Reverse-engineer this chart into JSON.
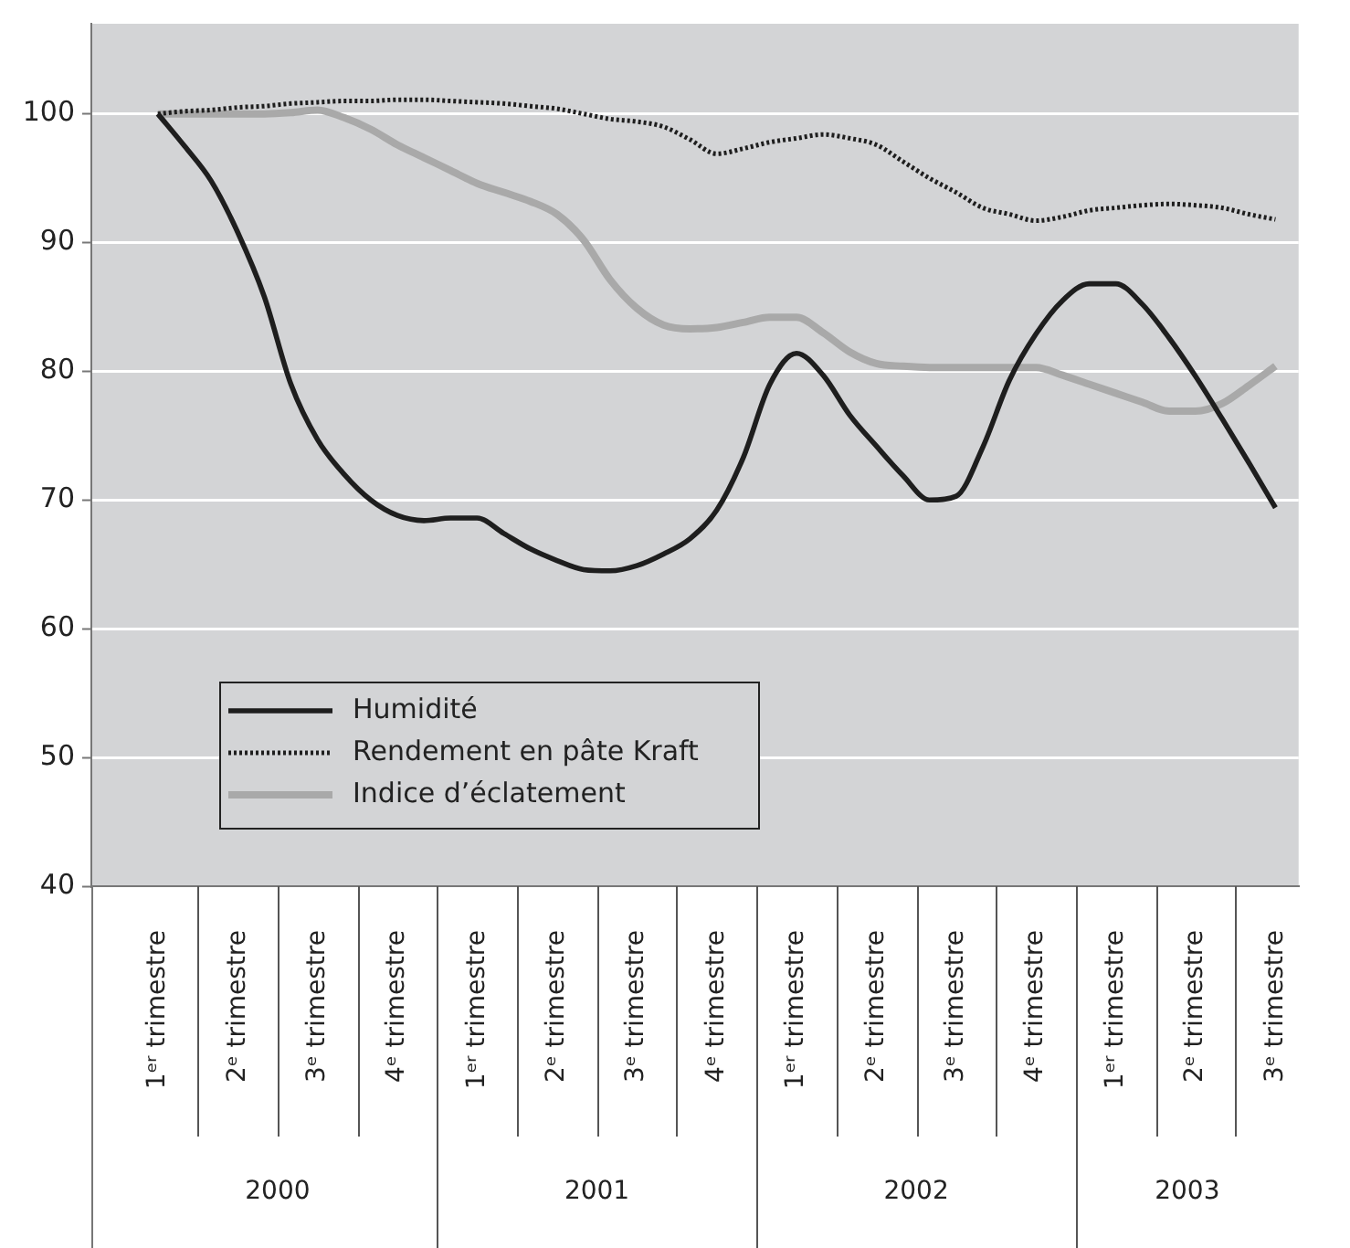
{
  "chart_data": {
    "type": "line",
    "ylim": [
      40,
      107
    ],
    "yticks": [
      40,
      50,
      60,
      70,
      80,
      90,
      100
    ],
    "grid": "y",
    "legend": "bottom left",
    "categories": [
      "1ᵉʳ trimestre",
      null,
      null,
      "2ᵉ trimestre",
      null,
      null,
      "3ᵉ trimestre",
      null,
      null,
      "4ᵉ trimestre",
      null,
      null,
      "1ᵉʳ trimestre",
      null,
      null,
      "2ᵉ trimestre",
      null,
      null,
      "3ᵉ trimestre",
      null,
      null,
      "4ᵉ trimestre",
      null,
      null,
      "1ᵉʳ trimestre",
      null,
      null,
      "2ᵉ trimestre",
      null,
      null,
      "3ᵉ trimestre",
      null,
      null,
      "4ᵉ trimestre",
      null,
      null,
      "1ᵉʳ trimestre",
      null,
      null,
      "2ᵉ trimestre",
      null,
      null,
      "3ᵉ trimestre"
    ],
    "annotations": [
      "2000",
      "2001",
      "2002",
      "2003"
    ],
    "series": [
      {
        "name": "Humidité",
        "color": "#1e1e1e",
        "line_style": "solid",
        "values": [
          100,
          97.5,
          94.8,
          90.8,
          85.8,
          79.0,
          74.7,
          72.0,
          70.0,
          68.8,
          68.4,
          68.6,
          68.6,
          67.4,
          66.2,
          65.3,
          64.6,
          64.5,
          64.9,
          65.8,
          67.0,
          69.2,
          73.3,
          79.0,
          81.4,
          79.7,
          76.6,
          74.2,
          71.9,
          70.0,
          70.3,
          74.1,
          79.3,
          82.9,
          85.5,
          86.8,
          86.8,
          85.2,
          82.6,
          79.6,
          76.3,
          72.9,
          69.4
        ]
      },
      {
        "name": "Rendement en pâte Kraft",
        "color": "#1e1e1e",
        "line_style": "dotted",
        "values": [
          100,
          100.2,
          100.3,
          100.5,
          100.6,
          100.8,
          100.9,
          101.0,
          101.0,
          101.1,
          101.1,
          101.0,
          100.9,
          100.8,
          100.6,
          100.4,
          100.0,
          99.6,
          99.4,
          99.0,
          98.0,
          96.9,
          97.3,
          97.8,
          98.1,
          98.4,
          98.1,
          97.6,
          96.3,
          95.0,
          93.9,
          92.7,
          92.2,
          91.7,
          92.0,
          92.5,
          92.7,
          92.9,
          93.0,
          92.9,
          92.7,
          92.2,
          91.8
        ]
      },
      {
        "name": "Indice d’éclatement",
        "color": "#a9a9a9",
        "line_style": "solid",
        "values": [
          100,
          100,
          100,
          100,
          100,
          100.1,
          100.3,
          99.7,
          98.8,
          97.6,
          96.6,
          95.6,
          94.6,
          93.9,
          93.2,
          92.2,
          90.2,
          87.1,
          84.9,
          83.6,
          83.3,
          83.4,
          83.8,
          84.2,
          84.2,
          83.0,
          81.5,
          80.6,
          80.4,
          80.3,
          80.3,
          80.3,
          80.3,
          80.3,
          79.7,
          79.0,
          78.3,
          77.6,
          76.9,
          76.9,
          77.5,
          78.9,
          80.4
        ]
      }
    ]
  }
}
